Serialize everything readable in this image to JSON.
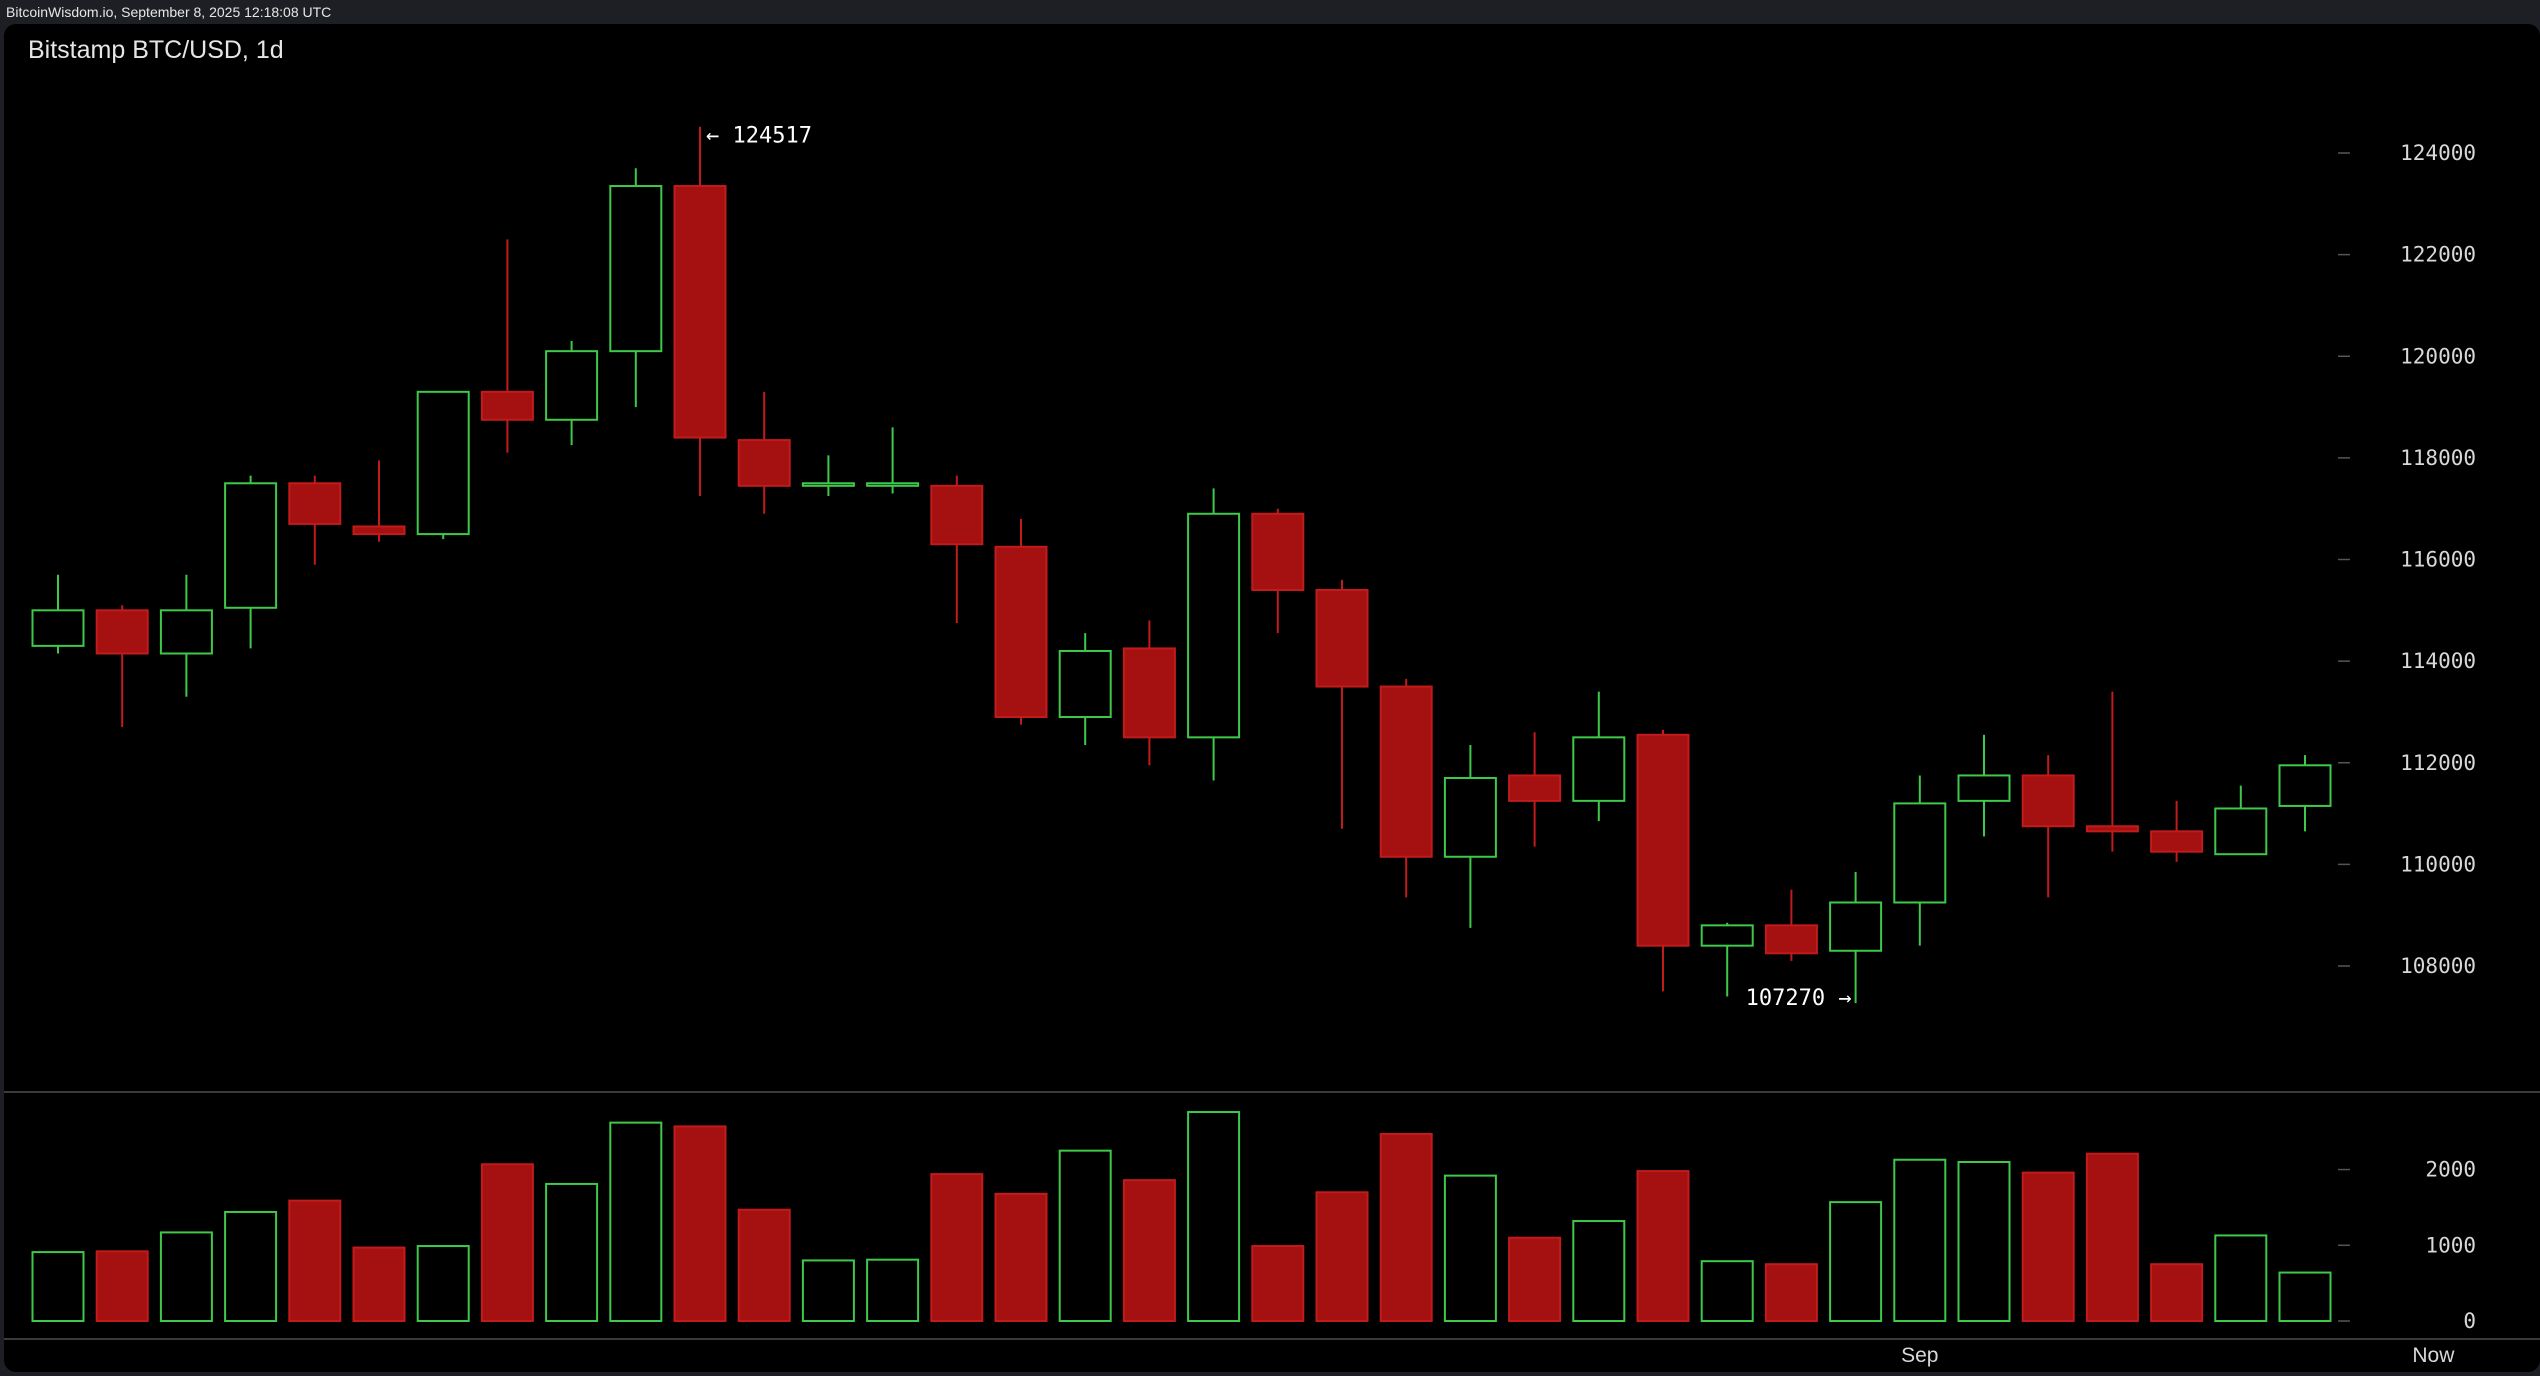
{
  "source": "BitcoinWisdom.io, September 8, 2025 12:18:08 UTC",
  "chart_data": {
    "type": "candlestick",
    "title": "Bitstamp BTC/USD, 1d",
    "colors": {
      "up": "#3ec94a",
      "down": "#a51010",
      "down_border": "#c21b1b",
      "grid": "#555555",
      "divider": "#3a3a3a"
    },
    "price_axis": {
      "ylim": [
        105700,
        126000
      ],
      "ticks": [
        108000,
        110000,
        112000,
        114000,
        116000,
        118000,
        120000,
        122000,
        124000
      ]
    },
    "volume_axis": {
      "ylim": [
        0,
        2800
      ],
      "ticks": [
        0,
        1000,
        2000
      ]
    },
    "x_labels": [
      {
        "label": "Sep",
        "index": 29
      },
      {
        "label": "Now",
        "index": 37
      }
    ],
    "annotations": [
      {
        "text": "← 124517",
        "index": 10,
        "price": 124517,
        "side": "right"
      },
      {
        "text": "107270 →",
        "index": 28,
        "price": 107270,
        "side": "left"
      }
    ],
    "candles": [
      {
        "o": 114300,
        "h": 115700,
        "l": 114150,
        "c": 115000,
        "v": 910
      },
      {
        "o": 115000,
        "h": 115100,
        "l": 112700,
        "c": 114150,
        "v": 920
      },
      {
        "o": 114150,
        "h": 115700,
        "l": 113300,
        "c": 115000,
        "v": 1170
      },
      {
        "o": 115050,
        "h": 117650,
        "l": 114250,
        "c": 117500,
        "v": 1440
      },
      {
        "o": 117500,
        "h": 117650,
        "l": 115900,
        "c": 116700,
        "v": 1590
      },
      {
        "o": 116650,
        "h": 117950,
        "l": 116350,
        "c": 116500,
        "v": 970
      },
      {
        "o": 116500,
        "h": 119300,
        "l": 116400,
        "c": 119300,
        "v": 990
      },
      {
        "o": 119300,
        "h": 122300,
        "l": 118100,
        "c": 118750,
        "v": 2070
      },
      {
        "o": 118750,
        "h": 120300,
        "l": 118250,
        "c": 120100,
        "v": 1810
      },
      {
        "o": 120100,
        "h": 123700,
        "l": 119000,
        "c": 123350,
        "v": 2620
      },
      {
        "o": 123350,
        "h": 124517,
        "l": 117250,
        "c": 118400,
        "v": 2570
      },
      {
        "o": 118350,
        "h": 119300,
        "l": 116900,
        "c": 117450,
        "v": 1470
      },
      {
        "o": 117450,
        "h": 118050,
        "l": 117250,
        "c": 117500,
        "v": 800
      },
      {
        "o": 117450,
        "h": 118600,
        "l": 117300,
        "c": 117500,
        "v": 810
      },
      {
        "o": 117450,
        "h": 117650,
        "l": 114750,
        "c": 116300,
        "v": 1940
      },
      {
        "o": 116250,
        "h": 116800,
        "l": 112750,
        "c": 112900,
        "v": 1680
      },
      {
        "o": 112900,
        "h": 114550,
        "l": 112350,
        "c": 114200,
        "v": 2250
      },
      {
        "o": 114250,
        "h": 114800,
        "l": 111950,
        "c": 112500,
        "v": 1860
      },
      {
        "o": 112500,
        "h": 117400,
        "l": 111650,
        "c": 116900,
        "v": 2760
      },
      {
        "o": 116900,
        "h": 117000,
        "l": 114550,
        "c": 115400,
        "v": 990
      },
      {
        "o": 115400,
        "h": 115600,
        "l": 110700,
        "c": 113500,
        "v": 1700
      },
      {
        "o": 113500,
        "h": 113650,
        "l": 109350,
        "c": 110150,
        "v": 2470
      },
      {
        "o": 110150,
        "h": 112350,
        "l": 108750,
        "c": 111700,
        "v": 1920
      },
      {
        "o": 111750,
        "h": 112600,
        "l": 110350,
        "c": 111250,
        "v": 1100
      },
      {
        "o": 111250,
        "h": 113400,
        "l": 110850,
        "c": 112500,
        "v": 1320
      },
      {
        "o": 112550,
        "h": 112650,
        "l": 107500,
        "c": 108400,
        "v": 1980
      },
      {
        "o": 108400,
        "h": 108850,
        "l": 107400,
        "c": 108800,
        "v": 790
      },
      {
        "o": 108800,
        "h": 109500,
        "l": 108100,
        "c": 108250,
        "v": 750
      },
      {
        "o": 108300,
        "h": 109850,
        "l": 107270,
        "c": 109250,
        "v": 1570
      },
      {
        "o": 109250,
        "h": 111750,
        "l": 108400,
        "c": 111200,
        "v": 2130
      },
      {
        "o": 111250,
        "h": 112550,
        "l": 110550,
        "c": 111750,
        "v": 2100
      },
      {
        "o": 111750,
        "h": 112150,
        "l": 109350,
        "c": 110750,
        "v": 1960
      },
      {
        "o": 110750,
        "h": 113400,
        "l": 110250,
        "c": 110650,
        "v": 2210
      },
      {
        "o": 110650,
        "h": 111250,
        "l": 110050,
        "c": 110250,
        "v": 750
      },
      {
        "o": 110200,
        "h": 111550,
        "l": 110200,
        "c": 111100,
        "v": 1130
      },
      {
        "o": 111150,
        "h": 112150,
        "l": 110650,
        "c": 111950,
        "v": 640
      }
    ]
  }
}
